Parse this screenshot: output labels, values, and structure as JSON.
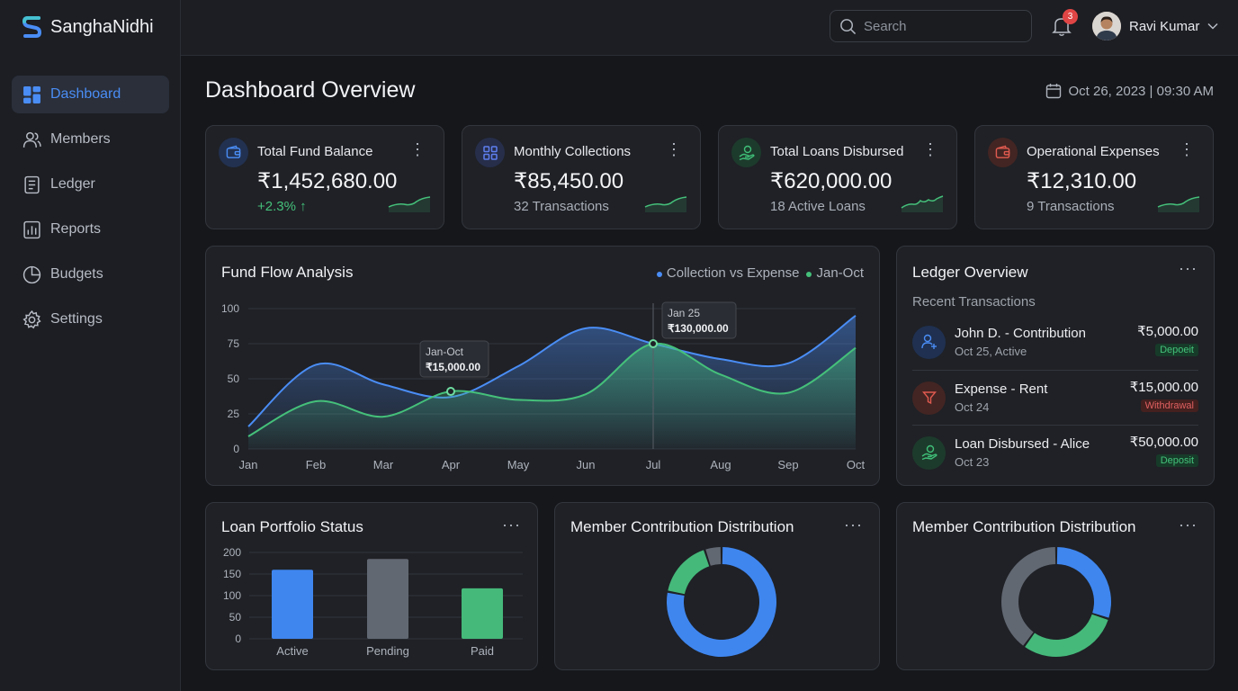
{
  "app": {
    "name": "SanghaNidhi"
  },
  "sidebar": {
    "items": [
      {
        "label": "Dashboard",
        "icon": "dashboard-icon",
        "active": true
      },
      {
        "label": "Members",
        "icon": "members-icon"
      },
      {
        "label": "Ledger",
        "icon": "ledger-icon"
      },
      {
        "label": "Reports",
        "icon": "reports-icon"
      },
      {
        "label": "Budgets",
        "icon": "budgets-icon"
      },
      {
        "label": "Settings",
        "icon": "settings-icon"
      }
    ]
  },
  "header": {
    "search_placeholder": "Search",
    "notifications": "3",
    "user_name": "Ravi Kumar"
  },
  "page": {
    "title": "Dashboard Overview",
    "date": "Oct 26, 2023 | 09:30 AM"
  },
  "stats": [
    {
      "label": "Total Fund Balance",
      "value": "₹1,452,680.00",
      "sub": "+2.3% ↑",
      "color": "#4a8df5",
      "icon": "wallet-icon"
    },
    {
      "label": "Monthly Collections",
      "value": "₹85,450.00",
      "sub": "32 Transactions",
      "color": "#5f7ff0",
      "icon": "collections-icon"
    },
    {
      "label": "Total Loans Disbursed",
      "value": "₹620,000.00",
      "sub": "18 Active Loans",
      "color": "#3fbf78",
      "icon": "loan-hand-icon"
    },
    {
      "label": "Operational Expenses",
      "value": "₹12,310.00",
      "sub": "9 Transactions",
      "color": "#e05a4f",
      "icon": "expense-wallet-icon"
    }
  ],
  "fund_flow": {
    "title": "Fund Flow Analysis",
    "legend": [
      "Collection vs Expense",
      "Jan-Oct"
    ],
    "tooltip1": {
      "title": "Jan-Oct",
      "value": "₹15,000.00"
    },
    "tooltip2": {
      "title": "Jan 25",
      "value": "₹130,000.00"
    }
  },
  "ledger": {
    "title": "Ledger Overview",
    "subtitle": "Recent Transactions",
    "items": [
      {
        "name": "John D. - Contribution",
        "meta": "Oct 25, Active",
        "amount": "₹5,000.00",
        "tag": "Depoeit",
        "kind": "deposit",
        "icon": "member-add-icon"
      },
      {
        "name": "Expense - Rent",
        "meta": "Oct 24",
        "amount": "₹15,000.00",
        "tag": "Withdrawal",
        "kind": "withdrawal",
        "icon": "funnel-icon"
      },
      {
        "name": "Loan Disbursed - Alice",
        "meta": "Oct 23",
        "amount": "₹50,000.00",
        "tag": "Deposit",
        "kind": "deposit",
        "icon": "loan-hand-icon"
      }
    ]
  },
  "loan_card": {
    "title": "Loan Portfolio Status"
  },
  "dist1": {
    "title": "Member Contribution Distribution"
  },
  "dist2": {
    "title": "Member Contribution Distribution"
  },
  "chart_data": [
    {
      "type": "area",
      "categories": [
        "Jan",
        "Feb",
        "Mar",
        "Apr",
        "May",
        "Jun",
        "Jul",
        "Aug",
        "Sep",
        "Oct"
      ],
      "yticks": [
        0,
        25,
        50,
        75,
        100
      ],
      "ylim": [
        0,
        100
      ],
      "series": [
        {
          "values": [
            16,
            60,
            46,
            37,
            59,
            86,
            75,
            64,
            61,
            95
          ],
          "color": "#4a8df5"
        },
        {
          "values": [
            9,
            34,
            23,
            41,
            35,
            39,
            75,
            53,
            40,
            72
          ],
          "color": "#45c07a"
        }
      ]
    },
    {
      "type": "bar",
      "categories": [
        "Active",
        "Pending",
        "Paid"
      ],
      "values": [
        160,
        185,
        117
      ],
      "colors": [
        "#3f86ef",
        "#626872",
        "#45b97a"
      ],
      "yticks": [
        0,
        50,
        100,
        150,
        200
      ],
      "ylim": [
        0,
        200
      ]
    },
    {
      "type": "pie",
      "donut": true,
      "slices": [
        {
          "value": 78,
          "color": "#3f86ef"
        },
        {
          "value": 17,
          "color": "#45b97a"
        },
        {
          "value": 5,
          "color": "#626872"
        }
      ]
    },
    {
      "type": "pie",
      "donut": true,
      "slices": [
        {
          "value": 30,
          "color": "#3f86ef"
        },
        {
          "value": 30,
          "color": "#45b97a"
        },
        {
          "value": 40,
          "color": "#626872"
        }
      ]
    }
  ]
}
